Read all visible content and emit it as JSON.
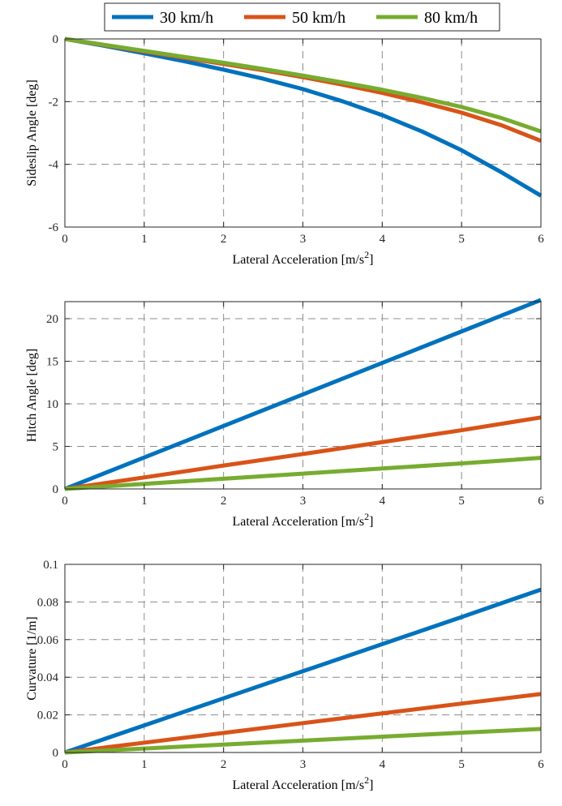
{
  "legend": {
    "placement": "top-center",
    "entries": [
      {
        "label": "30 km/h",
        "color": "#0072bd"
      },
      {
        "label": "50 km/h",
        "color": "#d95319"
      },
      {
        "label": "80 km/h",
        "color": "#77ac30"
      }
    ]
  },
  "chart_data": [
    {
      "type": "line",
      "xlabel": "Lateral Acceleration [m/s",
      "xlabel_sup": "2",
      "xlabel_end": "]",
      "ylabel": "Sideslip Angle [deg]",
      "xlim": [
        0,
        6
      ],
      "ylim": [
        -6,
        0
      ],
      "xticks": [
        0,
        1,
        2,
        3,
        4,
        5,
        6
      ],
      "yticks": [
        -6,
        -4,
        -2,
        0
      ],
      "grid": true,
      "x": [
        0,
        0.5,
        1,
        1.5,
        2,
        2.5,
        3,
        3.5,
        4,
        4.5,
        5,
        5.5,
        6
      ],
      "series": [
        {
          "name": "30 km/h",
          "color": "#0072bd",
          "values": [
            0,
            -0.22,
            -0.46,
            -0.71,
            -0.98,
            -1.27,
            -1.6,
            -1.99,
            -2.43,
            -2.95,
            -3.55,
            -4.25,
            -5.0
          ]
        },
        {
          "name": "50 km/h",
          "color": "#d95319",
          "values": [
            0,
            -0.2,
            -0.4,
            -0.6,
            -0.8,
            -1.0,
            -1.22,
            -1.46,
            -1.72,
            -2.02,
            -2.35,
            -2.75,
            -3.25
          ]
        },
        {
          "name": "80 km/h",
          "color": "#77ac30",
          "values": [
            0,
            -0.19,
            -0.38,
            -0.57,
            -0.76,
            -0.96,
            -1.17,
            -1.39,
            -1.62,
            -1.88,
            -2.17,
            -2.52,
            -2.95
          ]
        }
      ]
    },
    {
      "type": "line",
      "xlabel": "Lateral Acceleration [m/s",
      "xlabel_sup": "2",
      "xlabel_end": "]",
      "ylabel": "Hitch Angle [deg]",
      "xlim": [
        0,
        6
      ],
      "ylim": [
        0,
        22
      ],
      "xticks": [
        0,
        1,
        2,
        3,
        4,
        5,
        6
      ],
      "yticks": [
        0,
        5,
        10,
        15,
        20
      ],
      "grid": true,
      "x": [
        0,
        1,
        2,
        3,
        4,
        5,
        6
      ],
      "series": [
        {
          "name": "30 km/h",
          "color": "#0072bd",
          "values": [
            0,
            3.7,
            7.4,
            11.1,
            14.8,
            18.5,
            22.2
          ]
        },
        {
          "name": "50 km/h",
          "color": "#d95319",
          "values": [
            0,
            1.35,
            2.75,
            4.1,
            5.5,
            6.9,
            8.4
          ]
        },
        {
          "name": "80 km/h",
          "color": "#77ac30",
          "values": [
            0,
            0.6,
            1.2,
            1.8,
            2.4,
            3.0,
            3.65
          ]
        }
      ]
    },
    {
      "type": "line",
      "xlabel": "Lateral Acceleration [m/s",
      "xlabel_sup": "2",
      "xlabel_end": "]",
      "ylabel": "Curvature [1/m]",
      "xlim": [
        0,
        6
      ],
      "ylim": [
        0,
        0.1
      ],
      "xticks": [
        0,
        1,
        2,
        3,
        4,
        5,
        6
      ],
      "yticks": [
        0,
        0.02,
        0.04,
        0.06,
        0.08,
        0.1
      ],
      "grid": true,
      "x": [
        0,
        1,
        2,
        3,
        4,
        5,
        6
      ],
      "series": [
        {
          "name": "30 km/h",
          "color": "#0072bd",
          "values": [
            0,
            0.0144,
            0.0288,
            0.0432,
            0.0576,
            0.072,
            0.0866
          ]
        },
        {
          "name": "50 km/h",
          "color": "#d95319",
          "values": [
            0,
            0.0052,
            0.0104,
            0.0156,
            0.0208,
            0.026,
            0.0311
          ]
        },
        {
          "name": "80 km/h",
          "color": "#77ac30",
          "values": [
            0,
            0.0021,
            0.0042,
            0.0063,
            0.0084,
            0.0105,
            0.0125
          ]
        }
      ]
    }
  ]
}
